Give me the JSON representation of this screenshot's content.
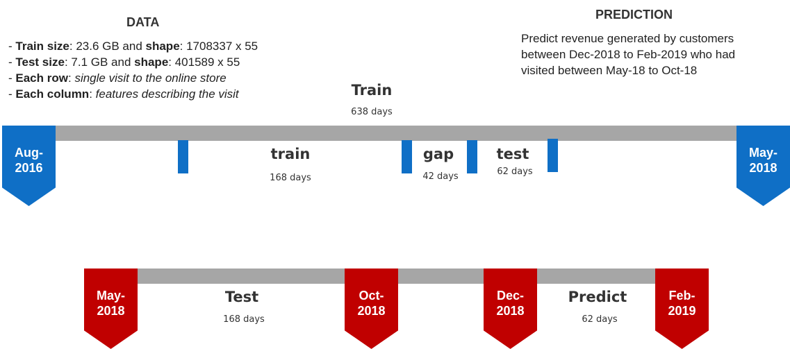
{
  "data_section": {
    "title": "DATA",
    "lines": [
      {
        "bold": "Train size",
        "rest": ": 23.6 GB and ",
        "bold2": "shape",
        "rest2": ": 1708337 x 55"
      },
      {
        "bold": "Test size",
        "rest": ": 7.1 GB and ",
        "bold2": "shape",
        "rest2": ": 401589 x 55"
      },
      {
        "bold": "Each row",
        "rest": ": ",
        "italic": "single visit to the online store"
      },
      {
        "bold": "Each column",
        "rest": ": ",
        "italic": "features describing the visit"
      }
    ],
    "bullet": "- "
  },
  "prediction_section": {
    "title": "PREDICTION",
    "text": "Predict revenue generated by customers between Dec-2018 to Feb-2019 who had visited between May-18 to Oct-18"
  },
  "top_timeline": {
    "title": "Train",
    "title_days": "638 days",
    "start": {
      "line1": "Aug-",
      "line2": "2016"
    },
    "end": {
      "line1": "May-",
      "line2": "2018"
    },
    "segments": [
      {
        "label": "train",
        "days": "168 days"
      },
      {
        "label": "gap",
        "days": "42 days"
      },
      {
        "label": "test",
        "days": "62 days"
      }
    ]
  },
  "bottom_timeline": {
    "markers": [
      {
        "line1": "May-",
        "line2": "2018"
      },
      {
        "line1": "Oct-",
        "line2": "2018"
      },
      {
        "line1": "Dec-",
        "line2": "2018"
      },
      {
        "line1": "Feb-",
        "line2": "2019"
      }
    ],
    "segments": [
      {
        "label": "Test",
        "days": "168 days"
      },
      {
        "label": "Predict",
        "days": "62 days"
      }
    ]
  },
  "colors": {
    "blue": "#0f6fc6",
    "red": "#c00000",
    "gray": "#a6a6a6"
  }
}
